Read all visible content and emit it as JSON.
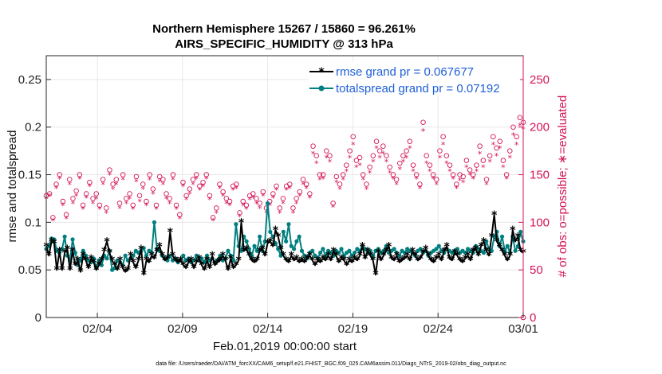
{
  "chart_data": {
    "type": "line",
    "title_line1": "Northern Hemisphere 15267 / 15860 = 96.261%",
    "title_line2": "AIRS_SPECIFIC_HUMIDITY @ 313 hPa",
    "xlabel": "Feb.01,2019 00:00:00 start",
    "ylabel_left": "rmse and totalspread",
    "ylabel_right": "# of obs: o=possible; ∗=evaluated",
    "x_tick_labels": [
      "02/04",
      "02/09",
      "02/14",
      "02/19",
      "02/24",
      "03/01"
    ],
    "x_tick_days": [
      3,
      8,
      13,
      18,
      23,
      28
    ],
    "xlim_days": [
      0,
      28
    ],
    "ylim_left": [
      0,
      0.275
    ],
    "y_ticks_left": [
      "0",
      "0.05",
      "0.1",
      "0.15",
      "0.2",
      "0.25"
    ],
    "ylim_right": [
      0,
      275
    ],
    "y_ticks_right": [
      "0",
      "50",
      "100",
      "150",
      "200",
      "250"
    ],
    "grid": true,
    "legend_position": "top-right",
    "colors": {
      "rmse": "#000000",
      "spread": "#008080",
      "obs": "#d4145a",
      "legend_text": "#1e5fd8",
      "grid": "#e8e8e8"
    },
    "series": [
      {
        "name": "rmse",
        "legend": "rmse grand pr = 0.067677",
        "values": [
          0.075,
          0.065,
          0.08,
          0.078,
          0.05,
          0.07,
          0.05,
          0.068,
          0.072,
          0.05,
          0.07,
          0.055,
          0.06,
          0.048,
          0.065,
          0.06,
          0.052,
          0.062,
          0.058,
          0.05,
          0.055,
          0.06,
          0.07,
          0.08,
          0.068,
          0.06,
          0.055,
          0.05,
          0.06,
          0.052,
          0.048,
          0.05,
          0.065,
          0.058,
          0.052,
          0.06,
          0.072,
          0.045,
          0.06,
          0.058,
          0.065,
          0.062,
          0.07,
          0.075,
          0.065,
          0.06,
          0.062,
          0.09,
          0.065,
          0.06,
          0.058,
          0.06,
          0.055,
          0.052,
          0.058,
          0.06,
          0.052,
          0.058,
          0.062,
          0.055,
          0.05,
          0.06,
          0.052,
          0.065,
          0.055,
          0.058,
          0.06,
          0.065,
          0.06,
          0.05,
          0.062,
          0.052,
          0.055,
          0.06,
          0.1,
          0.07,
          0.072,
          0.065,
          0.06,
          0.058,
          0.06,
          0.07,
          0.072,
          0.065,
          0.078,
          0.08,
          0.075,
          0.092,
          0.085,
          0.072,
          0.065,
          0.06,
          0.058,
          0.065,
          0.06,
          0.062,
          0.058,
          0.06,
          0.058,
          0.062,
          0.065,
          0.06,
          0.055,
          0.06,
          0.058,
          0.062,
          0.06,
          0.065,
          0.06,
          0.07,
          0.065,
          0.058,
          0.062,
          0.06,
          0.055,
          0.06,
          0.058,
          0.062,
          0.06,
          0.065,
          0.075,
          0.062,
          0.07,
          0.065,
          0.06,
          0.045,
          0.068,
          0.06,
          0.065,
          0.07,
          0.075,
          0.062,
          0.06,
          0.065,
          0.058,
          0.06,
          0.062,
          0.065,
          0.06,
          0.07,
          0.065,
          0.06,
          0.062,
          0.068,
          0.072,
          0.065,
          0.06,
          0.058,
          0.062,
          0.065,
          0.06,
          0.07,
          0.075,
          0.062,
          0.06,
          0.068,
          0.065,
          0.06,
          0.058,
          0.062,
          0.065,
          0.06,
          0.07,
          0.072,
          0.065,
          0.075,
          0.08,
          0.07,
          0.065,
          0.085,
          0.108,
          0.08,
          0.075,
          0.07,
          0.065,
          0.06,
          0.065,
          0.092,
          0.08,
          0.085,
          0.07,
          0.068
        ]
      },
      {
        "name": "totalspread",
        "legend": "totalspread grand pr = 0.07192",
        "values": [
          0.072,
          0.075,
          0.083,
          0.082,
          0.07,
          0.068,
          0.072,
          0.085,
          0.065,
          0.06,
          0.082,
          0.068,
          0.055,
          0.06,
          0.07,
          0.065,
          0.06,
          0.058,
          0.062,
          0.052,
          0.06,
          0.055,
          0.065,
          0.062,
          0.07,
          0.05,
          0.052,
          0.06,
          0.058,
          0.055,
          0.065,
          0.06,
          0.062,
          0.065,
          0.07,
          0.068,
          0.07,
          0.073,
          0.065,
          0.07,
          0.068,
          0.1,
          0.072,
          0.07,
          0.065,
          0.062,
          0.06,
          0.065,
          0.06,
          0.062,
          0.058,
          0.06,
          0.065,
          0.06,
          0.062,
          0.058,
          0.06,
          0.065,
          0.06,
          0.062,
          0.058,
          0.065,
          0.06,
          0.062,
          0.058,
          0.06,
          0.065,
          0.06,
          0.062,
          0.07,
          0.065,
          0.06,
          0.098,
          0.075,
          0.07,
          0.085,
          0.08,
          0.072,
          0.065,
          0.075,
          0.07,
          0.085,
          0.07,
          0.08,
          0.12,
          0.09,
          0.085,
          0.078,
          0.072,
          0.065,
          0.09,
          0.08,
          0.098,
          0.075,
          0.072,
          0.08,
          0.085,
          0.07,
          0.065,
          0.062,
          0.068,
          0.07,
          0.065,
          0.062,
          0.068,
          0.072,
          0.065,
          0.07,
          0.068,
          0.065,
          0.07,
          0.068,
          0.072,
          0.065,
          0.068,
          0.07,
          0.065,
          0.068,
          0.072,
          0.07,
          0.075,
          0.072,
          0.068,
          0.07,
          0.065,
          0.07,
          0.072,
          0.068,
          0.07,
          0.075,
          0.068,
          0.07,
          0.072,
          0.068,
          0.065,
          0.07,
          0.068,
          0.072,
          0.07,
          0.068,
          0.065,
          0.07,
          0.072,
          0.068,
          0.07,
          0.065,
          0.068,
          0.07,
          0.072,
          0.075,
          0.07,
          0.068,
          0.072,
          0.07,
          0.068,
          0.07,
          0.072,
          0.068,
          0.07,
          0.068,
          0.072,
          0.07,
          0.068,
          0.075,
          0.072,
          0.07,
          0.068,
          0.08,
          0.072,
          0.07,
          0.085,
          0.09,
          0.075,
          0.085,
          0.07,
          0.075,
          0.068,
          0.085,
          0.07,
          0.075,
          0.09,
          0.08
        ]
      },
      {
        "name": "obs_possible",
        "values": [
          128,
          130,
          105,
          140,
          150,
          122,
          108,
          145,
          125,
          133,
          150,
          118,
          130,
          142,
          125,
          130,
          118,
          145,
          115,
          155,
          140,
          145,
          120,
          150,
          125,
          130,
          118,
          148,
          128,
          140,
          122,
          150,
          135,
          118,
          148,
          145,
          130,
          125,
          150,
          118,
          108,
          142,
          128,
          135,
          145,
          150,
          138,
          142,
          150,
          128,
          105,
          115,
          140,
          132,
          125,
          122,
          138,
          140,
          110,
          122,
          118,
          128,
          130,
          125,
          120,
          132,
          115,
          122,
          130,
          138,
          115,
          125,
          138,
          140,
          115,
          125,
          132,
          145,
          140,
          130,
          180,
          170,
          150,
          150,
          175,
          170,
          120,
          148,
          140,
          150,
          160,
          175,
          190,
          165,
          168,
          150,
          140,
          158,
          170,
          185,
          175,
          180,
          170,
          158,
          150,
          145,
          162,
          170,
          175,
          185,
          160,
          150,
          140,
          205,
          170,
          160,
          150,
          145,
          175,
          190,
          170,
          160,
          150,
          140,
          150,
          148,
          165,
          155,
          150,
          160,
          180,
          165,
          145,
          170,
          190,
          178,
          185,
          165,
          150,
          175,
          200,
          190,
          210,
          205
        ]
      },
      {
        "name": "obs_evaluated",
        "values": [
          125,
          128,
          102,
          136,
          146,
          118,
          104,
          140,
          120,
          128,
          146,
          114,
          126,
          138,
          120,
          125,
          114,
          140,
          110,
          150,
          135,
          140,
          115,
          145,
          120,
          125,
          114,
          143,
          122,
          135,
          118,
          145,
          130,
          114,
          143,
          140,
          125,
          120,
          145,
          114,
          104,
          138,
          124,
          130,
          140,
          146,
          134,
          138,
          146,
          124,
          102,
          110,
          136,
          128,
          120,
          118,
          134,
          136,
          106,
          118,
          114,
          124,
          126,
          120,
          115,
          128,
          110,
          118,
          126,
          134,
          110,
          120,
          134,
          136,
          110,
          120,
          128,
          140,
          136,
          126,
          172,
          162,
          145,
          146,
          168,
          164,
          116,
          142,
          135,
          145,
          154,
          168,
          182,
          158,
          160,
          145,
          135,
          152,
          164,
          178,
          168,
          172,
          164,
          152,
          146,
          140,
          156,
          164,
          168,
          178,
          154,
          146,
          136,
          196,
          162,
          154,
          146,
          140,
          168,
          182,
          162,
          154,
          146,
          136,
          144,
          142,
          158,
          150,
          146,
          154,
          172,
          158,
          140,
          164,
          182,
          170,
          178,
          158,
          146,
          168,
          192,
          182,
          202,
          198
        ]
      }
    ]
  },
  "footnote": "data file: /Users/raeder/DAI/ATM_forcXX/CAM6_setup/f.e21.FHIST_BGC.f09_025.CAM6assim.011/Diags_NTrS_2019-02/obs_diag_output.nc"
}
